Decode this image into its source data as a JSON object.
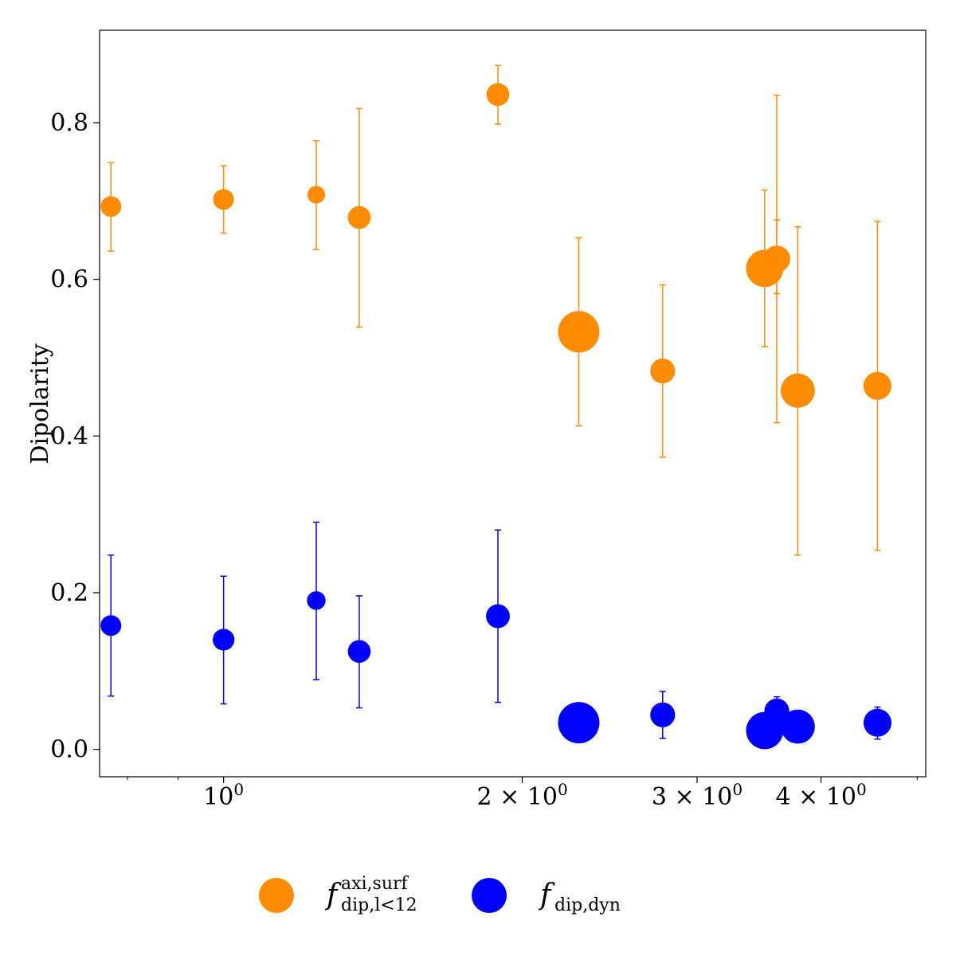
{
  "chart_data": {
    "type": "scatter",
    "title": "",
    "xlabel": "",
    "ylabel": "Dipolarity",
    "xscale": "log",
    "xlim": [
      0.75,
      5.1
    ],
    "ylim": [
      -0.035,
      0.918
    ],
    "grid": false,
    "legend_position": "bottom-center-outside",
    "x_major_ticks": [
      {
        "value": 1,
        "base": "10",
        "exp": "0"
      },
      {
        "value": 2,
        "coef": "2",
        "times": "×",
        "base": "10",
        "exp": "0"
      },
      {
        "value": 3,
        "coef": "3",
        "times": "×",
        "base": "10",
        "exp": "0"
      },
      {
        "value": 4,
        "coef": "4",
        "times": "×",
        "base": "10",
        "exp": "0"
      }
    ],
    "x_minor_ticks": [
      0.8,
      0.9,
      5
    ],
    "y_ticks": [
      {
        "value": 0.0,
        "label": "0.0"
      },
      {
        "value": 0.2,
        "label": "0.2"
      },
      {
        "value": 0.4,
        "label": "0.4"
      },
      {
        "value": 0.6,
        "label": "0.6"
      },
      {
        "value": 0.8,
        "label": "0.8"
      }
    ],
    "series": [
      {
        "name": "f",
        "name_sup": "axi,surf",
        "name_sub": "dip,l<12",
        "color": "#ff8c00",
        "points": [
          {
            "x": 0.77,
            "y": 0.693,
            "lo": 0.636,
            "hi": 0.749,
            "size": 1
          },
          {
            "x": 1.0,
            "y": 0.702,
            "lo": 0.659,
            "hi": 0.745,
            "size": 1
          },
          {
            "x": 1.24,
            "y": 0.708,
            "lo": 0.638,
            "hi": 0.777,
            "size": 0.85
          },
          {
            "x": 1.37,
            "y": 0.679,
            "lo": 0.539,
            "hi": 0.818,
            "size": 1.1
          },
          {
            "x": 1.89,
            "y": 0.836,
            "lo": 0.798,
            "hi": 0.873,
            "size": 1.1
          },
          {
            "x": 2.28,
            "y": 0.533,
            "lo": 0.413,
            "hi": 0.653,
            "size": 2.0
          },
          {
            "x": 2.77,
            "y": 0.483,
            "lo": 0.373,
            "hi": 0.593,
            "size": 1.2
          },
          {
            "x": 3.51,
            "y": 0.614,
            "lo": 0.514,
            "hi": 0.714,
            "size": 1.8
          },
          {
            "x": 3.61,
            "y": 0.626,
            "lo": 0.417,
            "hi": 0.835,
            "size": 1.3
          },
          {
            "x": 3.61,
            "y": 0.626,
            "lo": 0.582,
            "hi": 0.676,
            "size": 0
          },
          {
            "x": 3.79,
            "y": 0.458,
            "lo": 0.248,
            "hi": 0.667,
            "size": 1.65
          },
          {
            "x": 4.56,
            "y": 0.464,
            "lo": 0.254,
            "hi": 0.674,
            "size": 1.35
          }
        ]
      },
      {
        "name": "f",
        "name_sub": "dip,dyn",
        "color": "#0000ff",
        "points": [
          {
            "x": 0.77,
            "y": 0.158,
            "lo": 0.068,
            "hi": 0.248,
            "size": 1
          },
          {
            "x": 1.0,
            "y": 0.14,
            "lo": 0.058,
            "hi": 0.221,
            "size": 1.05
          },
          {
            "x": 1.24,
            "y": 0.19,
            "lo": 0.089,
            "hi": 0.29,
            "size": 0.9
          },
          {
            "x": 1.37,
            "y": 0.125,
            "lo": 0.053,
            "hi": 0.196,
            "size": 1.1
          },
          {
            "x": 1.89,
            "y": 0.17,
            "lo": 0.06,
            "hi": 0.28,
            "size": 1.15
          },
          {
            "x": 2.28,
            "y": 0.034,
            "lo": 0.034,
            "hi": 0.034,
            "size": 2.0
          },
          {
            "x": 2.77,
            "y": 0.044,
            "lo": 0.014,
            "hi": 0.074,
            "size": 1.2
          },
          {
            "x": 3.51,
            "y": 0.024,
            "lo": 0.024,
            "hi": 0.024,
            "size": 1.8
          },
          {
            "x": 3.61,
            "y": 0.049,
            "lo": 0.03,
            "hi": 0.067,
            "size": 1.2
          },
          {
            "x": 3.79,
            "y": 0.029,
            "lo": 0.029,
            "hi": 0.029,
            "size": 1.65
          },
          {
            "x": 4.56,
            "y": 0.034,
            "lo": 0.013,
            "hi": 0.054,
            "size": 1.35
          }
        ]
      }
    ]
  }
}
